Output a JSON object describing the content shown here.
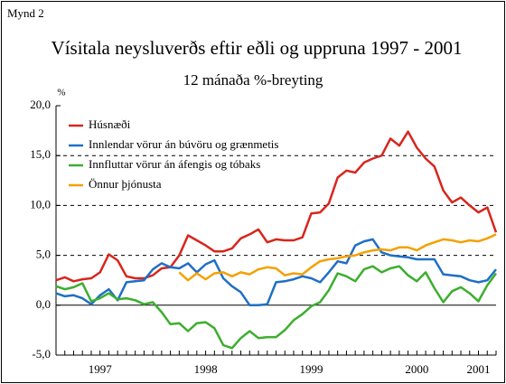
{
  "chart_data": {
    "type": "line",
    "label": "Mynd 2",
    "title": "Vísitala neysluverðs eftir eðli og uppruna 1997 - 2001",
    "subtitle": "12 mánaða %-breyting",
    "y_label": "%",
    "categories": [
      null,
      null,
      null,
      null,
      null,
      "1997",
      null,
      null,
      null,
      null,
      null,
      null,
      null,
      null,
      null,
      null,
      null,
      "1998",
      null,
      null,
      null,
      null,
      null,
      null,
      null,
      null,
      null,
      null,
      null,
      "1999",
      null,
      null,
      null,
      null,
      null,
      null,
      null,
      null,
      null,
      null,
      null,
      "2000",
      null,
      null,
      null,
      null,
      null,
      null,
      "2001",
      null,
      null
    ],
    "ylim": [
      -5,
      20
    ],
    "yticks": [
      {
        "value": -5,
        "label": "-5,0"
      },
      {
        "value": 0,
        "label": "0,0"
      },
      {
        "value": 5,
        "label": "5,0"
      },
      {
        "value": 10,
        "label": "10,0"
      },
      {
        "value": 15,
        "label": "15,0"
      },
      {
        "value": 20,
        "label": "20,0"
      }
    ],
    "grid": true,
    "legend": "upper left",
    "series": [
      {
        "name": "Húsnæði",
        "color": "#d7261e",
        "values": [
          2.5,
          2.8,
          2.4,
          2.6,
          2.7,
          3.3,
          5.1,
          4.5,
          2.9,
          2.7,
          2.7,
          3.0,
          3.7,
          3.8,
          5.0,
          7.0,
          6.5,
          6.0,
          5.4,
          5.4,
          5.7,
          6.7,
          7.1,
          7.6,
          6.3,
          6.6,
          6.5,
          6.5,
          6.8,
          9.2,
          9.3,
          10.2,
          12.8,
          13.5,
          13.3,
          14.3,
          14.7,
          15.0,
          16.7,
          16.0,
          17.4,
          15.8,
          14.7,
          13.9,
          11.5,
          10.3,
          10.8,
          10.0,
          9.3,
          9.8,
          7.3
        ]
      },
      {
        "name": "Innlendar vörur án búvöru og grænmetis",
        "color": "#1f6fc5",
        "values": [
          1.2,
          0.9,
          1.0,
          0.7,
          0.1,
          1.0,
          1.6,
          0.5,
          2.3,
          2.4,
          2.5,
          3.6,
          4.2,
          3.8,
          3.7,
          4.2,
          3.3,
          4.1,
          4.5,
          2.7,
          1.9,
          1.3,
          0.0,
          0.0,
          0.1,
          2.3,
          2.4,
          2.6,
          2.9,
          2.7,
          2.3,
          3.3,
          4.4,
          4.2,
          6.0,
          6.4,
          6.6,
          5.3,
          5.0,
          4.9,
          4.8,
          4.6,
          4.6,
          4.6,
          3.1,
          3.0,
          2.9,
          2.5,
          2.3,
          2.5,
          3.6
        ]
      },
      {
        "name": "Innfluttar vörur án áfengis og tóbaks",
        "color": "#3cae2e",
        "values": [
          1.9,
          1.6,
          1.8,
          2.2,
          0.4,
          0.7,
          1.2,
          0.6,
          0.7,
          0.5,
          0.1,
          0.3,
          -0.7,
          -1.9,
          -1.8,
          -2.6,
          -1.8,
          -1.7,
          -2.3,
          -4.0,
          -4.3,
          -3.3,
          -2.6,
          -3.3,
          -3.2,
          -3.2,
          -2.5,
          -1.5,
          -0.9,
          -0.1,
          0.3,
          1.5,
          3.2,
          2.9,
          2.4,
          3.6,
          3.9,
          3.3,
          3.7,
          3.9,
          3.0,
          2.4,
          3.3,
          1.7,
          0.3,
          1.4,
          1.8,
          1.2,
          0.4,
          2.0,
          3.2
        ]
      },
      {
        "name": "Önnur þjónusta",
        "color": "#f5a000",
        "values": [
          null,
          null,
          null,
          null,
          null,
          null,
          null,
          null,
          null,
          null,
          null,
          null,
          null,
          null,
          3.3,
          2.5,
          3.2,
          2.6,
          3.2,
          3.3,
          2.9,
          3.3,
          3.1,
          3.6,
          3.8,
          3.7,
          3.0,
          3.2,
          3.1,
          3.8,
          4.4,
          4.6,
          4.7,
          4.9,
          5.0,
          5.3,
          5.5,
          5.6,
          5.5,
          5.8,
          5.8,
          5.5,
          6.0,
          6.3,
          6.6,
          6.5,
          6.3,
          6.5,
          6.4,
          6.7,
          7.1
        ]
      }
    ]
  }
}
